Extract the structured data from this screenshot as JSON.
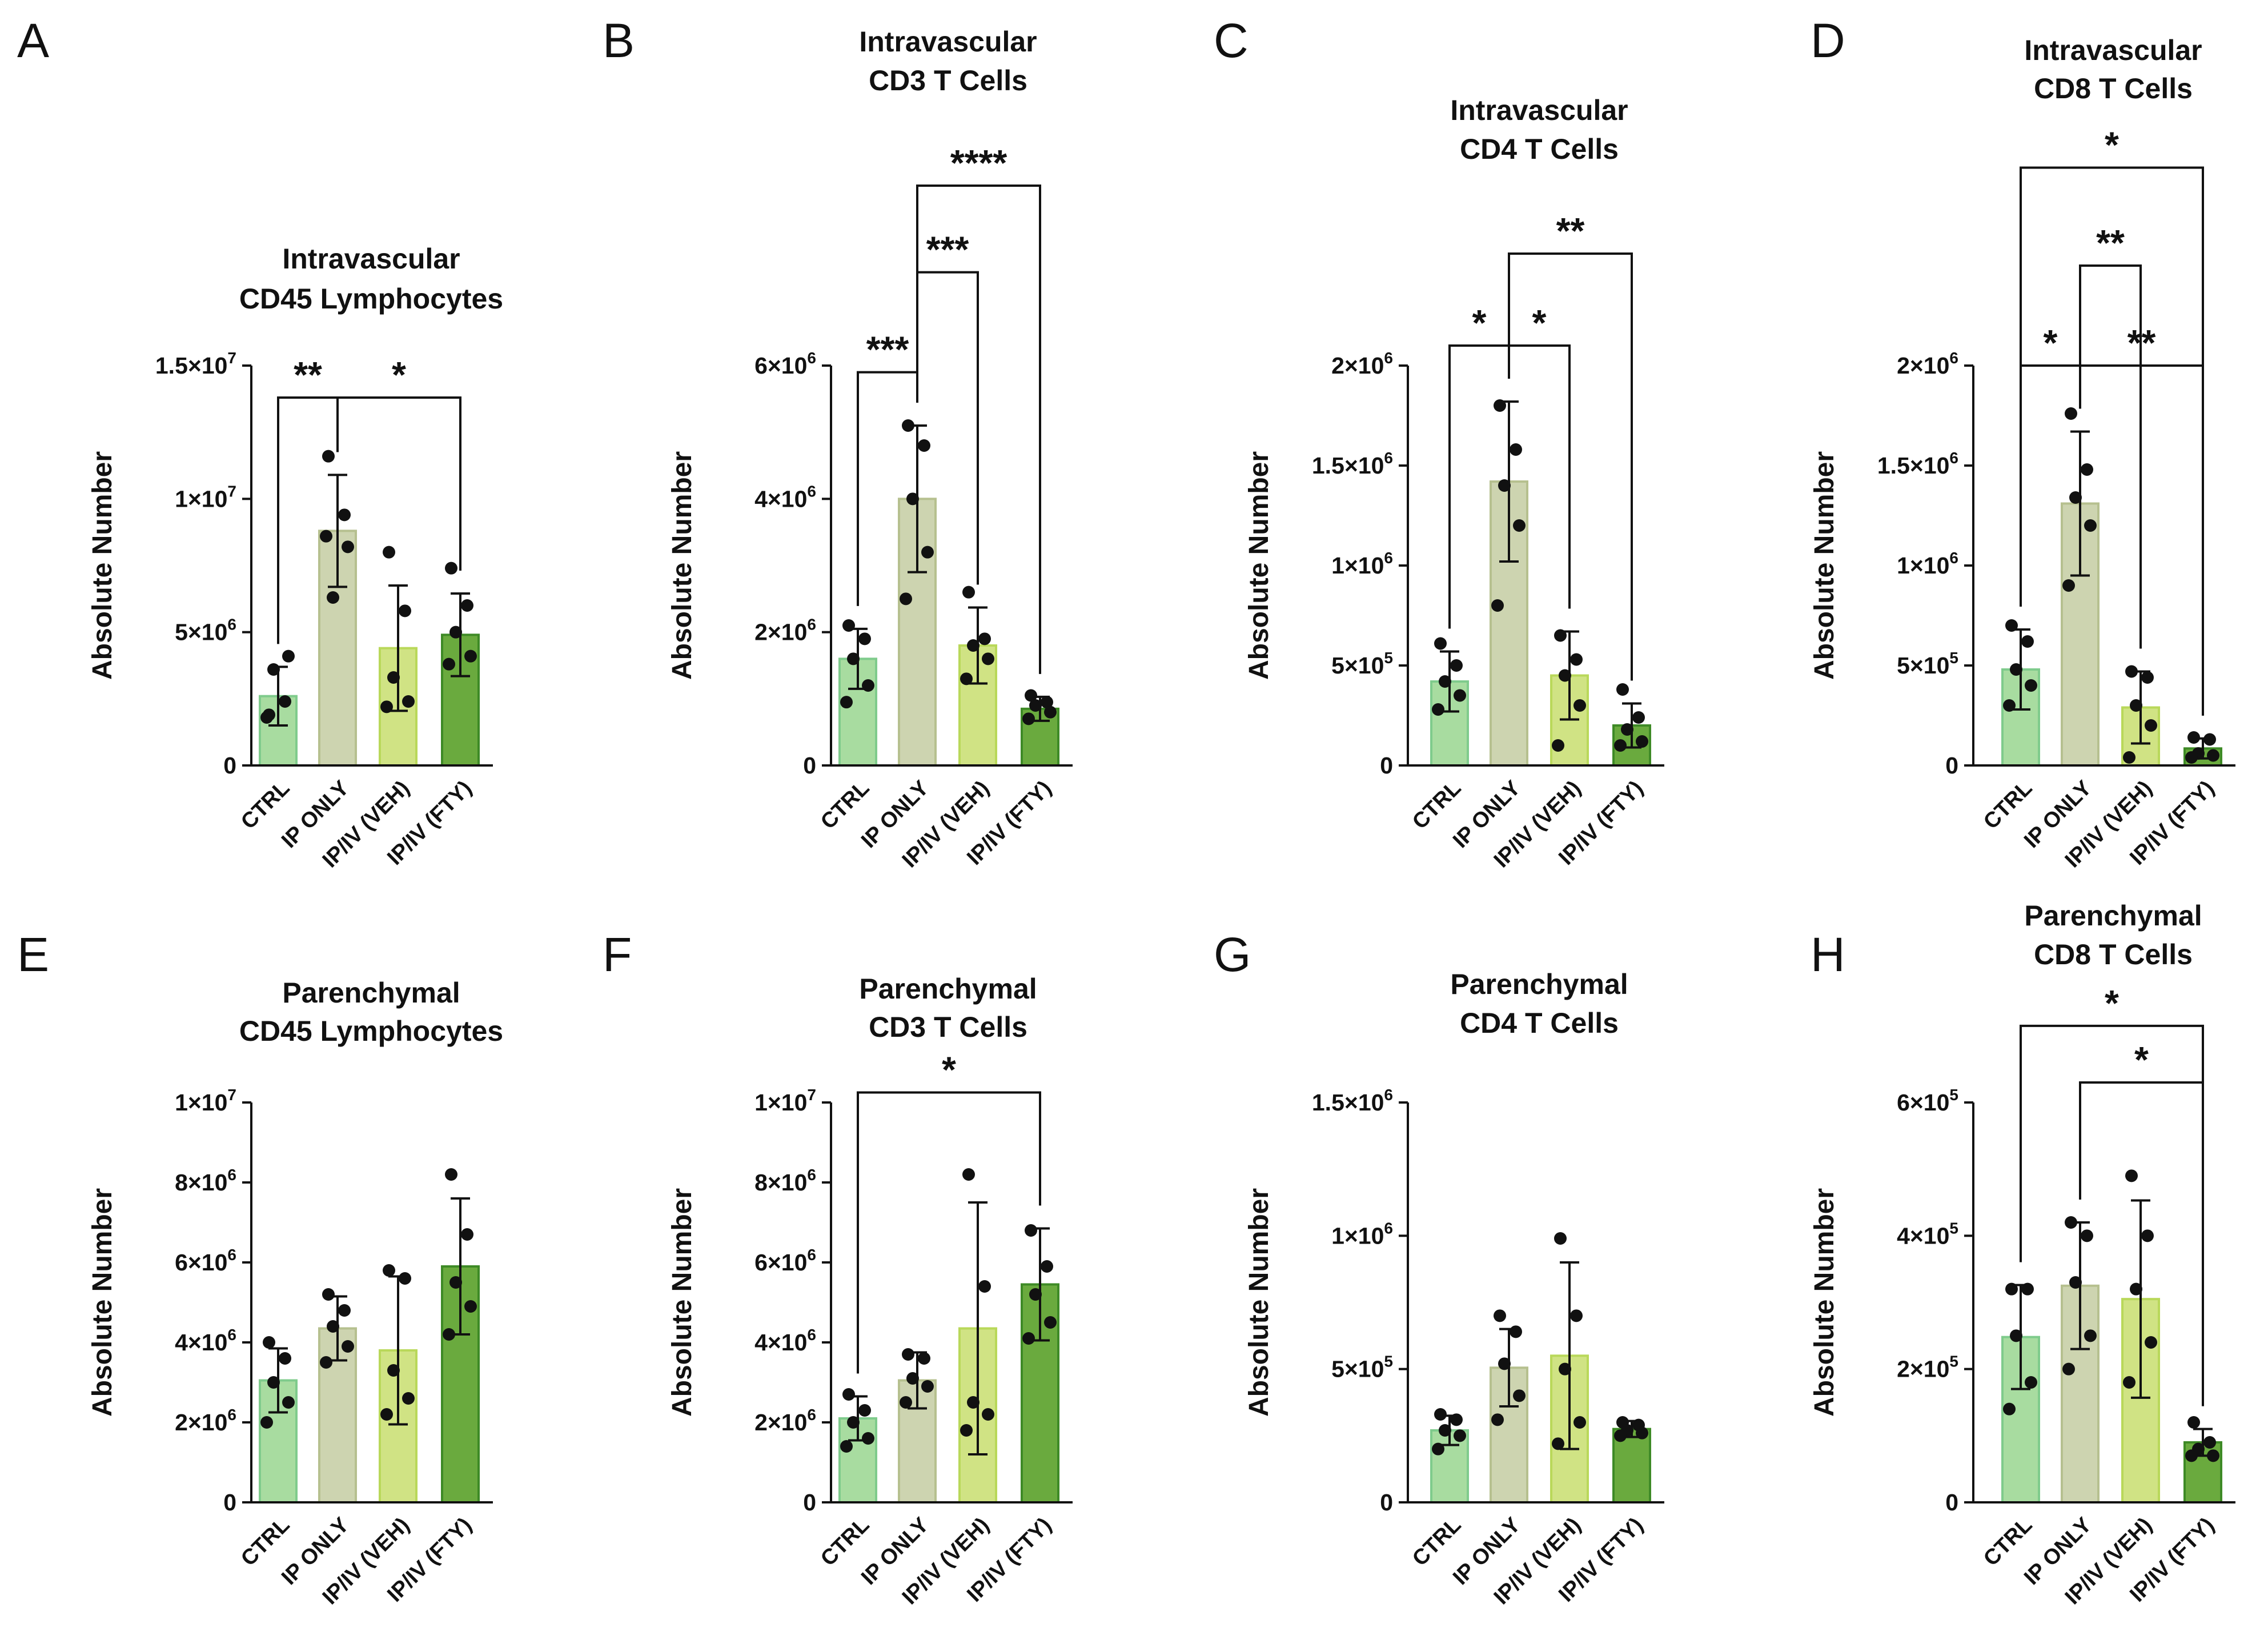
{
  "figure": {
    "categories": [
      "CTRL",
      "IP ONLY",
      "IP/IV (VEH)",
      "IP/IV (FTY)"
    ],
    "colors": {
      "CTRL": "#a8dca0",
      "IP ONLY": "#cdd4b0",
      "IP/IV (VEH)": "#d0e384",
      "IP/IV (FTY)": "#6aaa3e",
      "CTRL_edge": "#7fcb8c",
      "IP ONLY_edge": "#b6c08f",
      "IP/IV (VEH)_edge": "#b9d85a",
      "IP/IV (FTY)_edge": "#3e8a26",
      "ink": "#111111"
    }
  },
  "chart_data": [
    {
      "panel": "A",
      "type": "bar",
      "title": [
        "Intravascular",
        "CD45 Lymphocytes"
      ],
      "ylabel": "Absolute Number",
      "categories": [
        "CTRL",
        "IP ONLY",
        "IP/IV (VEH)",
        "IP/IV (FTY)"
      ],
      "ylim": [
        0,
        15000000
      ],
      "yticks": [
        {
          "value": 0,
          "label": "0"
        },
        {
          "value": 5000000,
          "label": "5×10",
          "exp": "6"
        },
        {
          "value": 10000000,
          "label": "1×10",
          "exp": "7"
        },
        {
          "value": 15000000,
          "label": "1.5×10",
          "exp": "7"
        }
      ],
      "values": [
        2600000,
        8800000,
        4400000,
        4900000
      ],
      "errors": [
        1100000,
        2100000,
        2350000,
        1550000
      ],
      "points": [
        [
          1900000,
          2400000,
          3600000,
          4100000,
          1800000
        ],
        [
          11600000,
          9400000,
          6300000,
          8200000,
          8600000
        ],
        [
          8000000,
          5800000,
          3300000,
          2400000,
          2200000
        ],
        [
          7400000,
          6000000,
          5000000,
          4100000,
          3800000
        ]
      ],
      "significance": [
        {
          "from": 0,
          "to": 1,
          "label": "**",
          "level": 13800000
        },
        {
          "from": 1,
          "to": 3,
          "label": "*",
          "level": 13800000
        }
      ]
    },
    {
      "panel": "B",
      "type": "bar",
      "title": [
        "Intravascular",
        "CD3 T Cells"
      ],
      "ylabel": "Absolute Number",
      "categories": [
        "CTRL",
        "IP ONLY",
        "IP/IV (VEH)",
        "IP/IV (FTY)"
      ],
      "ylim": [
        0,
        6000000
      ],
      "yticks": [
        {
          "value": 0,
          "label": "0"
        },
        {
          "value": 2000000,
          "label": "2×10",
          "exp": "6"
        },
        {
          "value": 4000000,
          "label": "4×10",
          "exp": "6"
        },
        {
          "value": 6000000,
          "label": "6×10",
          "exp": "6"
        }
      ],
      "values": [
        1600000,
        4000000,
        1800000,
        850000
      ],
      "errors": [
        450000,
        1100000,
        570000,
        180000
      ],
      "points": [
        [
          2100000,
          1900000,
          1600000,
          1200000,
          950000
        ],
        [
          5100000,
          4800000,
          4000000,
          3200000,
          2500000
        ],
        [
          2600000,
          1900000,
          1800000,
          1600000,
          1300000
        ],
        [
          1050000,
          950000,
          900000,
          800000,
          700000
        ]
      ],
      "significance": [
        {
          "from": 0,
          "to": 1,
          "label": "***",
          "level": 5900000
        },
        {
          "from": 1,
          "to": 2,
          "label": "***",
          "level": 7400000
        },
        {
          "from": 1,
          "to": 3,
          "label": "****",
          "level": 8700000
        }
      ]
    },
    {
      "panel": "C",
      "type": "bar",
      "title": [
        "Intravascular",
        "CD4 T Cells"
      ],
      "ylabel": "Absolute Number",
      "categories": [
        "CTRL",
        "IP ONLY",
        "IP/IV (VEH)",
        "IP/IV (FTY)"
      ],
      "ylim": [
        0,
        2000000
      ],
      "yticks": [
        {
          "value": 0,
          "label": "0"
        },
        {
          "value": 500000,
          "label": "5×10",
          "exp": "5"
        },
        {
          "value": 1000000,
          "label": "1×10",
          "exp": "6"
        },
        {
          "value": 1500000,
          "label": "1.5×10",
          "exp": "6"
        },
        {
          "value": 2000000,
          "label": "2×10",
          "exp": "6"
        }
      ],
      "values": [
        420000,
        1420000,
        450000,
        200000
      ],
      "errors": [
        150000,
        400000,
        220000,
        110000
      ],
      "points": [
        [
          610000,
          500000,
          420000,
          350000,
          280000
        ],
        [
          1800000,
          1580000,
          1400000,
          1200000,
          800000
        ],
        [
          650000,
          530000,
          450000,
          300000,
          100000
        ],
        [
          380000,
          240000,
          180000,
          120000,
          100000
        ]
      ],
      "significance": [
        {
          "from": 0,
          "to": 1,
          "label": "*",
          "level": 2100000
        },
        {
          "from": 1,
          "to": 2,
          "label": "*",
          "level": 2100000
        },
        {
          "from": 1,
          "to": 3,
          "label": "**",
          "level": 2560000
        }
      ]
    },
    {
      "panel": "D",
      "type": "bar",
      "title": [
        "Intravascular",
        "CD8 T Cells"
      ],
      "ylabel": "Absolute Number",
      "categories": [
        "CTRL",
        "IP ONLY",
        "IP/IV (VEH)",
        "IP/IV (FTY)"
      ],
      "ylim": [
        0,
        2000000
      ],
      "yticks": [
        {
          "value": 0,
          "label": "0"
        },
        {
          "value": 500000,
          "label": "5×10",
          "exp": "5"
        },
        {
          "value": 1000000,
          "label": "1×10",
          "exp": "6"
        },
        {
          "value": 1500000,
          "label": "1.5×10",
          "exp": "6"
        },
        {
          "value": 2000000,
          "label": "2×10",
          "exp": "6"
        }
      ],
      "values": [
        480000,
        1310000,
        290000,
        85000
      ],
      "errors": [
        200000,
        360000,
        180000,
        50000
      ],
      "points": [
        [
          700000,
          620000,
          480000,
          400000,
          300000
        ],
        [
          1760000,
          1480000,
          1340000,
          1200000,
          900000
        ],
        [
          470000,
          440000,
          300000,
          200000,
          40000
        ],
        [
          140000,
          130000,
          60000,
          50000,
          40000
        ]
      ],
      "significance": [
        {
          "from": 0,
          "to": 1,
          "label": "*",
          "level": 2000000
        },
        {
          "from": 1,
          "to": 3,
          "label": "**",
          "level": 2000000
        },
        {
          "from": 1,
          "to": 2,
          "label": "**",
          "level": 2500000
        },
        {
          "from": 0,
          "to": 3,
          "label": "*",
          "level": 2990000
        }
      ]
    },
    {
      "panel": "E",
      "type": "bar",
      "title": [
        "Parenchymal",
        "CD45 Lymphocytes"
      ],
      "ylabel": "Absolute Number",
      "categories": [
        "CTRL",
        "IP ONLY",
        "IP/IV (VEH)",
        "IP/IV (FTY)"
      ],
      "ylim": [
        0,
        10000000
      ],
      "yticks": [
        {
          "value": 0,
          "label": "0"
        },
        {
          "value": 2000000,
          "label": "2×10",
          "exp": "6"
        },
        {
          "value": 4000000,
          "label": "4×10",
          "exp": "6"
        },
        {
          "value": 6000000,
          "label": "6×10",
          "exp": "6"
        },
        {
          "value": 8000000,
          "label": "8×10",
          "exp": "6"
        },
        {
          "value": 10000000,
          "label": "1×10",
          "exp": "7"
        }
      ],
      "values": [
        3050000,
        4350000,
        3800000,
        5900000
      ],
      "errors": [
        800000,
        800000,
        1850000,
        1700000
      ],
      "points": [
        [
          4000000,
          3600000,
          3000000,
          2500000,
          2000000
        ],
        [
          5200000,
          4800000,
          4400000,
          3900000,
          3500000
        ],
        [
          5800000,
          5600000,
          3300000,
          2600000,
          2200000
        ],
        [
          8200000,
          6700000,
          5500000,
          4900000,
          4200000
        ]
      ],
      "significance": []
    },
    {
      "panel": "F",
      "type": "bar",
      "title": [
        "Parenchymal",
        "CD3 T Cells"
      ],
      "ylabel": "Absolute Number",
      "categories": [
        "CTRL",
        "IP ONLY",
        "IP/IV (VEH)",
        "IP/IV (FTY)"
      ],
      "ylim": [
        0,
        10000000
      ],
      "yticks": [
        {
          "value": 0,
          "label": "0"
        },
        {
          "value": 2000000,
          "label": "2×10",
          "exp": "6"
        },
        {
          "value": 4000000,
          "label": "4×10",
          "exp": "6"
        },
        {
          "value": 6000000,
          "label": "6×10",
          "exp": "6"
        },
        {
          "value": 8000000,
          "label": "8×10",
          "exp": "6"
        },
        {
          "value": 10000000,
          "label": "1×10",
          "exp": "7"
        }
      ],
      "values": [
        2100000,
        3050000,
        4350000,
        5450000
      ],
      "errors": [
        550000,
        700000,
        3150000,
        1400000
      ],
      "points": [
        [
          2700000,
          2300000,
          2000000,
          1600000,
          1400000
        ],
        [
          3700000,
          3600000,
          3100000,
          2900000,
          2500000
        ],
        [
          8200000,
          5400000,
          2500000,
          2200000,
          1800000
        ],
        [
          6800000,
          5900000,
          5200000,
          4500000,
          4100000
        ]
      ],
      "significance": [
        {
          "from": 0,
          "to": 3,
          "label": "*",
          "level": 10250000
        }
      ]
    },
    {
      "panel": "G",
      "type": "bar",
      "title": [
        "Parenchymal",
        "CD4 T Cells"
      ],
      "ylabel": "Absolute Number",
      "categories": [
        "CTRL",
        "IP ONLY",
        "IP/IV (VEH)",
        "IP/IV (FTY)"
      ],
      "ylim": [
        0,
        1500000
      ],
      "yticks": [
        {
          "value": 0,
          "label": "0"
        },
        {
          "value": 500000,
          "label": "5×10",
          "exp": "5"
        },
        {
          "value": 1000000,
          "label": "1×10",
          "exp": "6"
        },
        {
          "value": 1500000,
          "label": "1.5×10",
          "exp": "6"
        }
      ],
      "values": [
        270000,
        505000,
        550000,
        275000
      ],
      "errors": [
        55000,
        145000,
        350000,
        30000
      ],
      "points": [
        [
          330000,
          310000,
          270000,
          250000,
          200000
        ],
        [
          700000,
          640000,
          520000,
          400000,
          310000
        ],
        [
          990000,
          700000,
          500000,
          300000,
          220000
        ],
        [
          300000,
          290000,
          270000,
          260000,
          250000
        ]
      ],
      "significance": []
    },
    {
      "panel": "H",
      "type": "bar",
      "title": [
        "Parenchymal",
        "CD8 T Cells"
      ],
      "ylabel": "Absolute Number",
      "categories": [
        "CTRL",
        "IP ONLY",
        "IP/IV (VEH)",
        "IP/IV (FTY)"
      ],
      "ylim": [
        0,
        600000
      ],
      "yticks": [
        {
          "value": 0,
          "label": "0"
        },
        {
          "value": 200000,
          "label": "2×10",
          "exp": "5"
        },
        {
          "value": 400000,
          "label": "4×10",
          "exp": "5"
        },
        {
          "value": 600000,
          "label": "6×10",
          "exp": "5"
        }
      ],
      "values": [
        248000,
        325000,
        305000,
        90000
      ],
      "errors": [
        78000,
        95000,
        148000,
        20000
      ],
      "points": [
        [
          320000,
          320000,
          250000,
          180000,
          140000
        ],
        [
          420000,
          400000,
          330000,
          250000,
          200000
        ],
        [
          490000,
          400000,
          320000,
          240000,
          180000
        ],
        [
          120000,
          90000,
          80000,
          70000,
          70000
        ]
      ],
      "significance": [
        {
          "from": 1,
          "to": 3,
          "label": "*",
          "level": 630000
        },
        {
          "from": 0,
          "to": 3,
          "label": "*",
          "level": 715000
        }
      ]
    }
  ]
}
